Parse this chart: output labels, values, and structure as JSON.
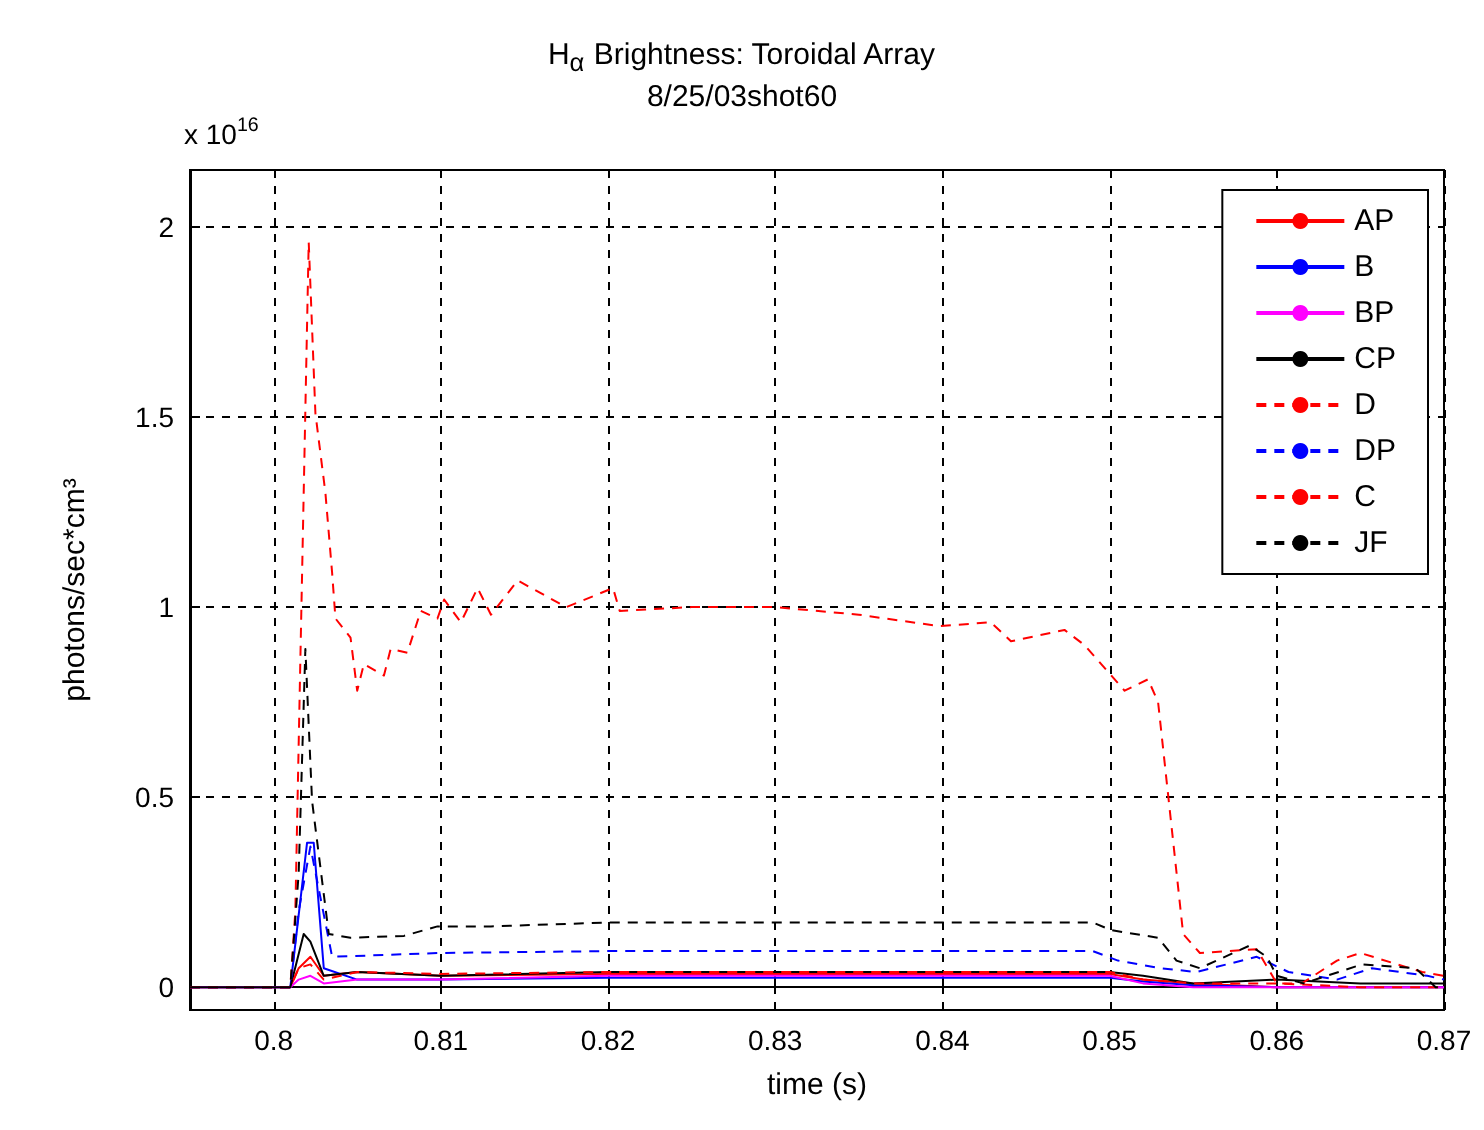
{
  "chart_data": {
    "type": "line",
    "title": "H$_{α}$ Brightness: Toroidal Array",
    "subtitle": "8/25/03shot60",
    "xlabel": "time (s)",
    "ylabel": "photons/sec*cm³",
    "annotations": [
      "x 10$^{16}$"
    ],
    "xlim": [
      0.795,
      0.87
    ],
    "xticks": [
      0.8,
      0.81,
      0.82,
      0.83,
      0.84,
      0.85,
      0.86,
      0.87
    ],
    "ylim": [
      -0.06,
      2.15
    ],
    "yticks": [
      0,
      0.5,
      1,
      1.5,
      2
    ],
    "grid": true,
    "legend": "top right",
    "marker": "none",
    "series": [
      {
        "name": "AP",
        "color": "#ff0000",
        "line_style": "solid",
        "x": [
          0.795,
          0.801,
          0.8015,
          0.8022,
          0.803,
          0.805,
          0.81,
          0.82,
          0.83,
          0.84,
          0.85,
          0.852,
          0.855,
          0.86,
          0.865,
          0.87
        ],
        "values": [
          0,
          0,
          0.05,
          0.08,
          0.03,
          0.04,
          0.03,
          0.035,
          0.035,
          0.035,
          0.035,
          0.02,
          0.01,
          0,
          0,
          0
        ]
      },
      {
        "name": "B",
        "color": "#0000ff",
        "line_style": "solid",
        "x": [
          0.795,
          0.801,
          0.802,
          0.8024,
          0.803,
          0.805,
          0.81,
          0.82,
          0.83,
          0.84,
          0.85,
          0.852,
          0.855,
          0.86,
          0.865,
          0.87
        ],
        "values": [
          0,
          0,
          0.38,
          0.38,
          0.05,
          0.02,
          0.02,
          0.025,
          0.025,
          0.025,
          0.025,
          0.015,
          0.005,
          0,
          0,
          0
        ]
      },
      {
        "name": "BP",
        "color": "#ff00ff",
        "line_style": "solid",
        "x": [
          0.795,
          0.801,
          0.8015,
          0.8022,
          0.803,
          0.805,
          0.81,
          0.82,
          0.83,
          0.84,
          0.85,
          0.852,
          0.855,
          0.86,
          0.865,
          0.87
        ],
        "values": [
          0,
          0,
          0.02,
          0.03,
          0.01,
          0.02,
          0.02,
          0.03,
          0.03,
          0.03,
          0.03,
          0.01,
          0,
          0,
          0,
          0
        ]
      },
      {
        "name": "CP",
        "color": "#000000",
        "line_style": "solid",
        "x": [
          0.795,
          0.801,
          0.8018,
          0.8022,
          0.803,
          0.805,
          0.81,
          0.82,
          0.83,
          0.84,
          0.85,
          0.852,
          0.855,
          0.86,
          0.865,
          0.87
        ],
        "values": [
          0,
          0,
          0.14,
          0.12,
          0.03,
          0.04,
          0.03,
          0.04,
          0.04,
          0.04,
          0.04,
          0.03,
          0.01,
          0.02,
          0.01,
          0.01
        ]
      },
      {
        "name": "D",
        "color": "#ff0000",
        "line_style": "dashed",
        "x": [
          0.795,
          0.801,
          0.8015,
          0.8022,
          0.803,
          0.805,
          0.81,
          0.82,
          0.83,
          0.84,
          0.85,
          0.852,
          0.855,
          0.86,
          0.865,
          0.87
        ],
        "values": [
          0,
          0,
          0.05,
          0.06,
          0.02,
          0.04,
          0.035,
          0.04,
          0.04,
          0.04,
          0.04,
          0.02,
          0.01,
          0.01,
          0,
          0
        ]
      },
      {
        "name": "DP",
        "color": "#0000ff",
        "line_style": "dashed",
        "x": [
          0.795,
          0.801,
          0.8015,
          0.8022,
          0.8035,
          0.81,
          0.82,
          0.83,
          0.84,
          0.849,
          0.8505,
          0.853,
          0.8552,
          0.8588,
          0.8607,
          0.8636,
          0.8657,
          0.869,
          0.87
        ],
        "values": [
          0,
          0,
          0.2,
          0.37,
          0.08,
          0.09,
          0.095,
          0.095,
          0.095,
          0.095,
          0.07,
          0.05,
          0.04,
          0.08,
          0.04,
          0.02,
          0.05,
          0.03,
          0.02
        ]
      },
      {
        "name": "C",
        "color": "#ff0000",
        "line_style": "dashed",
        "x": [
          0.795,
          0.801,
          0.8013,
          0.8021,
          0.8025,
          0.8031,
          0.8035,
          0.8037,
          0.8046,
          0.805,
          0.8054,
          0.8066,
          0.807,
          0.808,
          0.8088,
          0.8098,
          0.8102,
          0.8112,
          0.8122,
          0.813,
          0.8146,
          0.8175,
          0.8203,
          0.8207,
          0.825,
          0.83,
          0.835,
          0.8398,
          0.8429,
          0.8441,
          0.8473,
          0.8485,
          0.8495,
          0.8509,
          0.8523,
          0.8529,
          0.8544,
          0.8554,
          0.8588,
          0.86,
          0.8615,
          0.8636,
          0.865,
          0.8687,
          0.87
        ],
        "values": [
          0,
          0,
          0.2,
          1.96,
          1.51,
          1.3,
          1.09,
          0.97,
          0.92,
          0.78,
          0.85,
          0.82,
          0.89,
          0.88,
          0.99,
          0.97,
          1.02,
          0.96,
          1.05,
          0.98,
          1.07,
          1.0,
          1.05,
          0.99,
          1.0,
          1.0,
          0.98,
          0.95,
          0.96,
          0.91,
          0.94,
          0.9,
          0.85,
          0.78,
          0.81,
          0.75,
          0.14,
          0.09,
          0.1,
          0.01,
          0.01,
          0.07,
          0.09,
          0.04,
          0.03
        ]
      },
      {
        "name": "JF",
        "color": "#000000",
        "line_style": "dashed",
        "x": [
          0.795,
          0.801,
          0.8015,
          0.8019,
          0.8023,
          0.8033,
          0.8046,
          0.8078,
          0.8098,
          0.813,
          0.82,
          0.83,
          0.84,
          0.849,
          0.8501,
          0.8529,
          0.854,
          0.8554,
          0.8584,
          0.8594,
          0.86,
          0.8616,
          0.8651,
          0.8683,
          0.8695,
          0.87
        ],
        "values": [
          0,
          0,
          0.3,
          0.89,
          0.49,
          0.14,
          0.13,
          0.135,
          0.16,
          0.16,
          0.17,
          0.17,
          0.17,
          0.17,
          0.15,
          0.13,
          0.07,
          0.05,
          0.11,
          0.08,
          0.03,
          0.01,
          0.06,
          0.05,
          0,
          0
        ]
      }
    ]
  }
}
